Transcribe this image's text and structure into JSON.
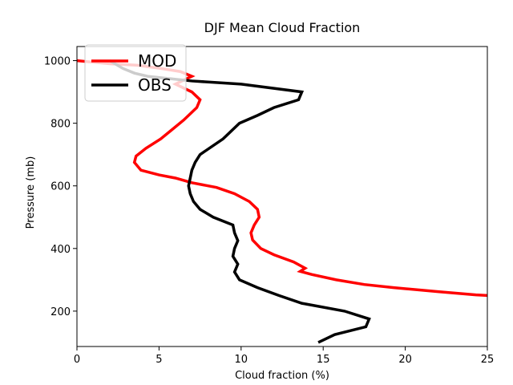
{
  "chart_data": {
    "type": "line",
    "title": "DJF Mean Cloud Fraction",
    "xlabel": "Cloud fraction (%)",
    "ylabel": "Pressure (mb)",
    "xlim": [
      0,
      25
    ],
    "ylim": [
      1045,
      87
    ],
    "y_inverted": true,
    "xticks": [
      0,
      5,
      10,
      15,
      20,
      25
    ],
    "yticks": [
      200,
      400,
      600,
      800,
      1000
    ],
    "grid": false,
    "legend_position": "top-left",
    "series": [
      {
        "name": "MOD",
        "color": "#ff0000",
        "points": [
          [
            25.0,
            250
          ],
          [
            24.3,
            252
          ],
          [
            22.0,
            262
          ],
          [
            19.3,
            275
          ],
          [
            17.5,
            285
          ],
          [
            15.8,
            300
          ],
          [
            14.3,
            317
          ],
          [
            13.6,
            327
          ],
          [
            13.9,
            337
          ],
          [
            13.2,
            357
          ],
          [
            12.0,
            380
          ],
          [
            11.2,
            400
          ],
          [
            10.7,
            427
          ],
          [
            10.6,
            450
          ],
          [
            10.8,
            475
          ],
          [
            11.1,
            500
          ],
          [
            11.0,
            525
          ],
          [
            10.5,
            550
          ],
          [
            9.6,
            575
          ],
          [
            8.5,
            595
          ],
          [
            7.0,
            610
          ],
          [
            6.0,
            625
          ],
          [
            5.0,
            635
          ],
          [
            3.9,
            650
          ],
          [
            3.5,
            675
          ],
          [
            3.6,
            695
          ],
          [
            4.2,
            720
          ],
          [
            5.1,
            750
          ],
          [
            5.8,
            780
          ],
          [
            6.5,
            810
          ],
          [
            7.3,
            850
          ],
          [
            7.5,
            875
          ],
          [
            7.0,
            900
          ],
          [
            6.0,
            925
          ],
          [
            7.0,
            950
          ],
          [
            6.3,
            965
          ],
          [
            5.1,
            975
          ],
          [
            3.7,
            985
          ],
          [
            2.0,
            990
          ],
          [
            0.0,
            1000
          ]
        ]
      },
      {
        "name": "OBS",
        "color": "#000000",
        "points": [
          [
            14.7,
            100
          ],
          [
            15.7,
            125
          ],
          [
            17.6,
            150
          ],
          [
            17.8,
            175
          ],
          [
            16.3,
            200
          ],
          [
            13.7,
            225
          ],
          [
            12.3,
            250
          ],
          [
            11.0,
            275
          ],
          [
            9.9,
            300
          ],
          [
            9.6,
            325
          ],
          [
            9.8,
            350
          ],
          [
            9.5,
            375
          ],
          [
            9.6,
            400
          ],
          [
            9.8,
            425
          ],
          [
            9.6,
            450
          ],
          [
            9.5,
            475
          ],
          [
            8.3,
            500
          ],
          [
            7.5,
            525
          ],
          [
            7.1,
            550
          ],
          [
            6.9,
            575
          ],
          [
            6.8,
            600
          ],
          [
            6.9,
            625
          ],
          [
            7.0,
            650
          ],
          [
            7.2,
            675
          ],
          [
            7.5,
            700
          ],
          [
            8.9,
            750
          ],
          [
            9.9,
            800
          ],
          [
            11.0,
            825
          ],
          [
            12.0,
            850
          ],
          [
            13.5,
            875
          ],
          [
            13.7,
            900
          ],
          [
            10.0,
            925
          ],
          [
            7.0,
            935
          ],
          [
            4.3,
            950
          ],
          [
            3.5,
            960
          ],
          [
            2.8,
            975
          ],
          [
            2.0,
            1000
          ]
        ]
      }
    ]
  }
}
